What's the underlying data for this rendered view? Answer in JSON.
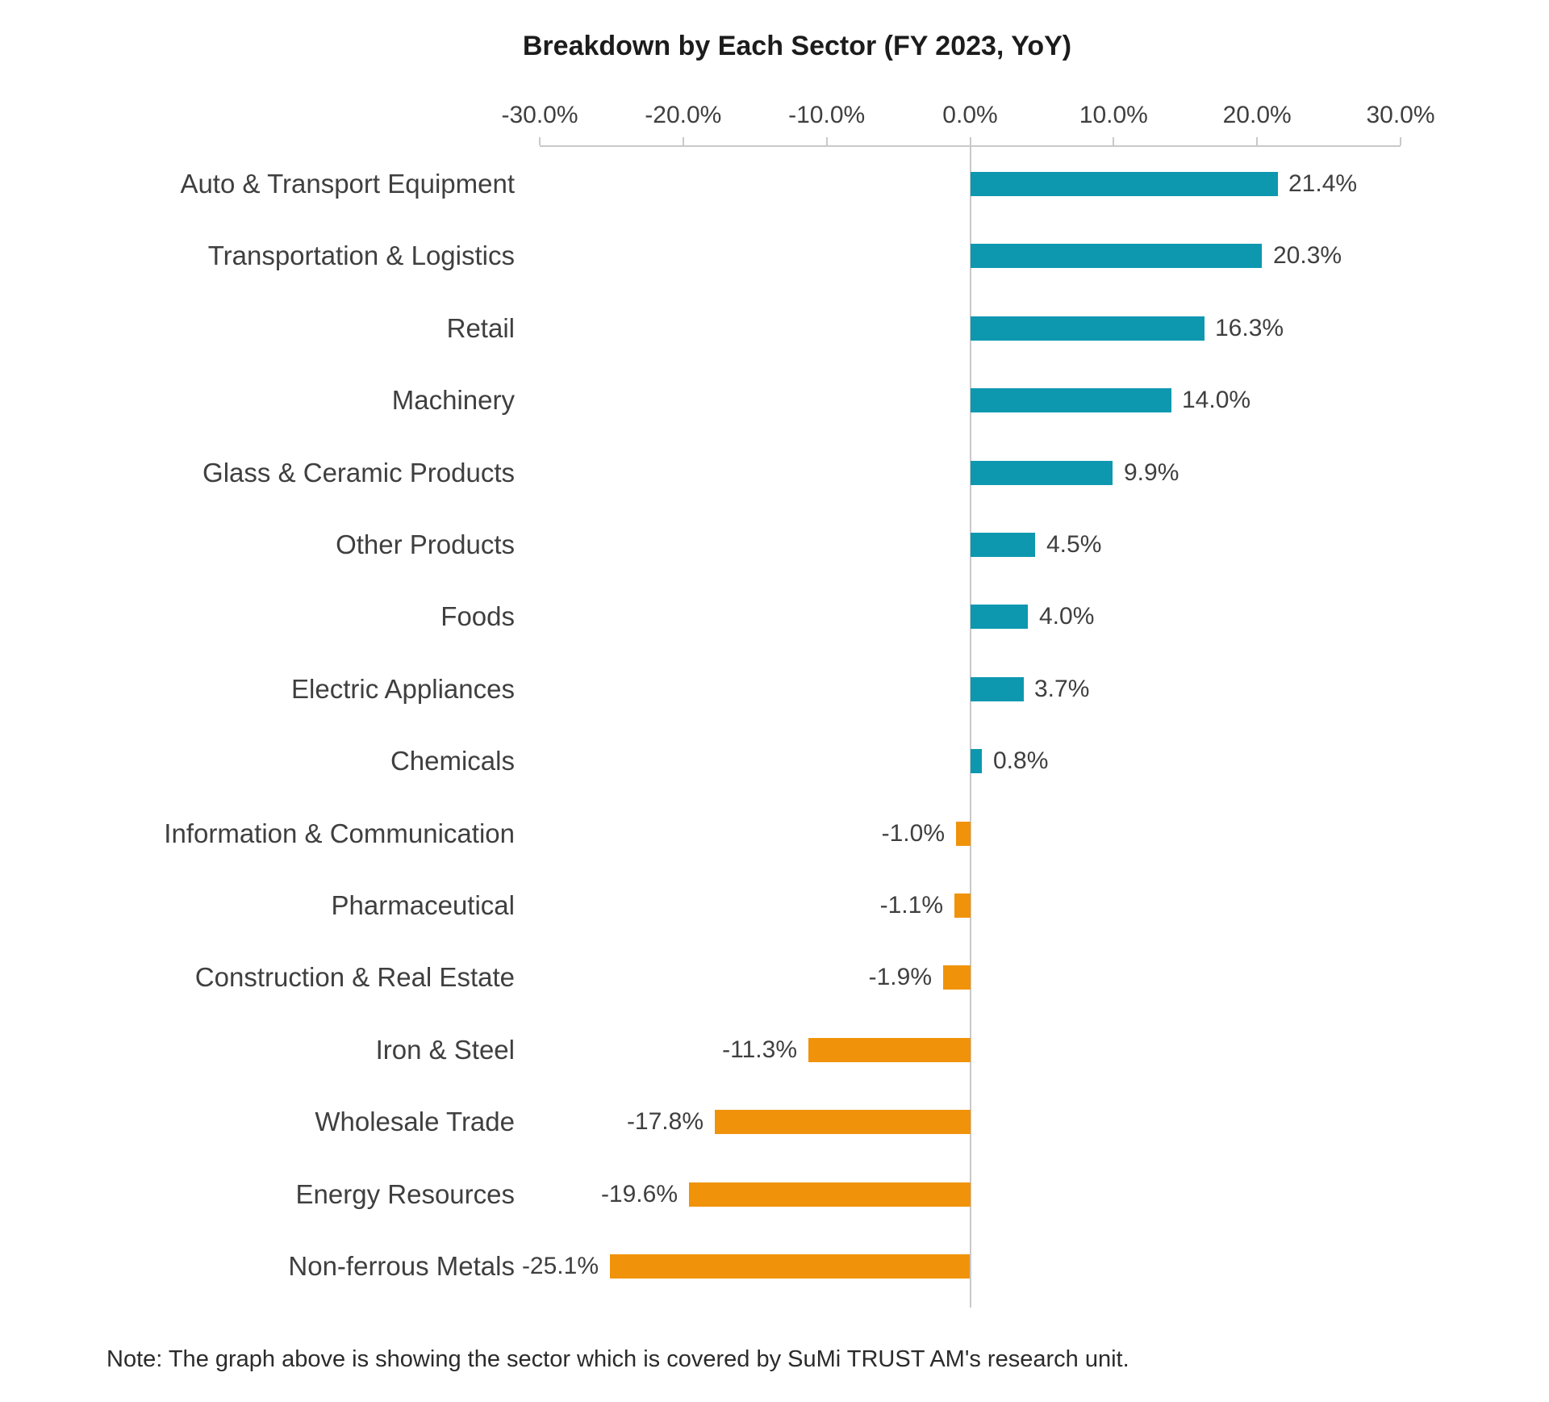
{
  "title": "Breakdown by Each Sector (FY 2023, YoY)",
  "note": "Note: The graph above is showing the sector which is covered by SuMi TRUST AM's research unit.",
  "colors": {
    "positive_bar": "#0d98b0",
    "negative_bar": "#f0930a",
    "axis_line": "#c9c9c9",
    "title_text": "#1c1c1c",
    "label_text": "#3f3f3f",
    "note_text": "#2b2b2b"
  },
  "chart_data": {
    "type": "bar",
    "orientation": "horizontal",
    "title": "Breakdown by Each Sector (FY 2023, YoY)",
    "categories": [
      "Auto & Transport Equipment",
      "Transportation & Logistics",
      "Retail",
      "Machinery",
      "Glass & Ceramic Products",
      "Other Products",
      "Foods",
      "Electric Appliances",
      "Chemicals",
      "Information & Communication",
      "Pharmaceutical",
      "Construction & Real Estate",
      "Iron & Steel",
      "Wholesale Trade",
      "Energy Resources",
      "Non-ferrous Metals"
    ],
    "values": [
      21.4,
      20.3,
      16.3,
      14.0,
      9.9,
      4.5,
      4.0,
      3.7,
      0.8,
      -1.0,
      -1.1,
      -1.9,
      -11.3,
      -17.8,
      -19.6,
      -25.1
    ],
    "value_labels": [
      "21.4%",
      "20.3%",
      "16.3%",
      "14.0%",
      "9.9%",
      "4.5%",
      "4.0%",
      "3.7%",
      "0.8%",
      "-1.0%",
      "-1.1%",
      "-1.9%",
      "-11.3%",
      "-17.8%",
      "-19.6%",
      "-25.1%"
    ],
    "x_tick_labels": [
      "-30.0%",
      "-20.0%",
      "-10.0%",
      "0.0%",
      "10.0%",
      "20.0%",
      "30.0%"
    ],
    "x_tick_values": [
      -30,
      -20,
      -10,
      0,
      10,
      20,
      30
    ],
    "xlim": [
      -30,
      30
    ],
    "grid": false,
    "legend": false,
    "axis_position": "top",
    "positive_color": "#0d98b0",
    "negative_color": "#f0930a"
  }
}
